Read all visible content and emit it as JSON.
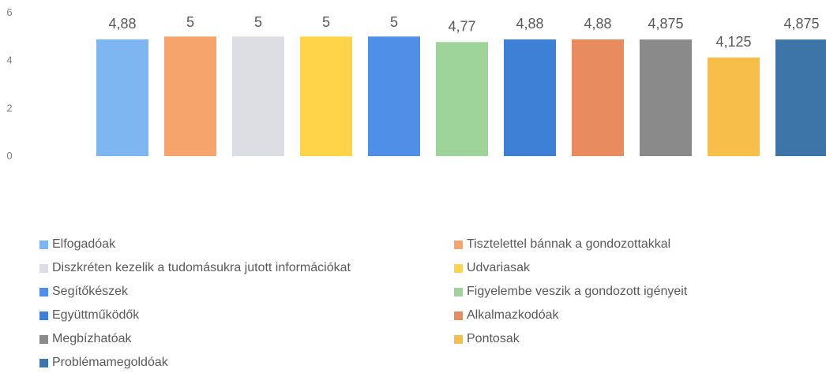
{
  "chart_data": {
    "type": "bar",
    "y_ticks": [
      "0",
      "2",
      "4",
      "6"
    ],
    "ylim": [
      0,
      6
    ],
    "grid": false,
    "legend_position": "bottom",
    "series": [
      {
        "name": "Elfogadóak",
        "value": 4.88,
        "label": "4,88",
        "color": "#7EB6F2"
      },
      {
        "name": "Tisztelettel bánnak a gondozottakkal",
        "value": 5,
        "label": "5",
        "color": "#F7A46C"
      },
      {
        "name": "Diszkréten kezelik a tudomásukra jutott információkat",
        "value": 5,
        "label": "5",
        "color": "#DDDDE4"
      },
      {
        "name": "Udvariasak",
        "value": 5,
        "label": "5",
        "color": "#FFD449"
      },
      {
        "name": "Segítőkészek",
        "value": 5,
        "label": "5",
        "color": "#4F8FE8"
      },
      {
        "name": "Figyelembe veszik a gondozott igényeit",
        "value": 4.77,
        "label": "4,77",
        "color": "#9ED49A"
      },
      {
        "name": "Együttműködők",
        "value": 4.88,
        "label": "4,88",
        "color": "#3D80D6"
      },
      {
        "name": "Alkalmazkodóak",
        "value": 4.88,
        "label": "4,88",
        "color": "#E88B5E"
      },
      {
        "name": "Megbízhatóak",
        "value": 4.875,
        "label": "4,875",
        "color": "#8A8A8A"
      },
      {
        "name": "Pontosak",
        "value": 4.125,
        "label": "4,125",
        "color": "#F7BE4A"
      },
      {
        "name": "Problémamegoldóak",
        "value": 4.875,
        "label": "4,875",
        "color": "#3E75A8"
      }
    ]
  }
}
